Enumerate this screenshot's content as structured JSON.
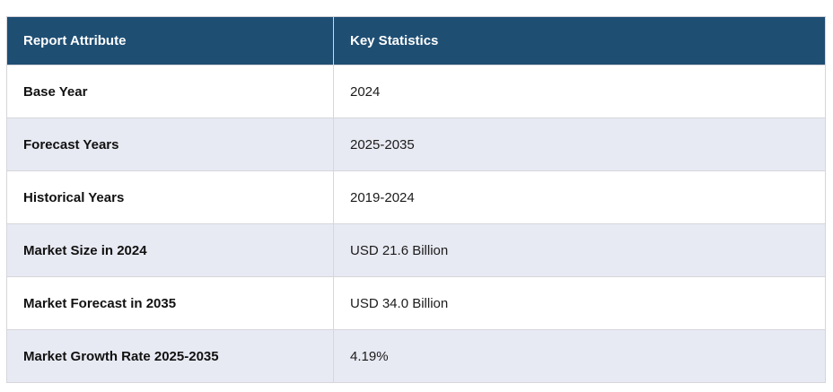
{
  "table": {
    "columns": [
      {
        "label": "Report Attribute"
      },
      {
        "label": "Key Statistics"
      }
    ],
    "rows": [
      {
        "attribute": "Base Year",
        "value": "2024"
      },
      {
        "attribute": "Forecast Years",
        "value": "2025-2035"
      },
      {
        "attribute": "Historical Years",
        "value": "2019-2024"
      },
      {
        "attribute": "Market Size in 2024",
        "value": "USD 21.6 Billion"
      },
      {
        "attribute": "Market Forecast in 2035",
        "value": "USD 34.0 Billion"
      },
      {
        "attribute": "Market Growth Rate 2025-2035",
        "value": "4.19%"
      }
    ],
    "colors": {
      "header_bg": "#1f4e73",
      "header_text": "#ffffff",
      "row_bg": "#ffffff",
      "row_alt_bg": "#e8eaf3",
      "border": "#d6d6db",
      "text": "#1b1b1b"
    }
  }
}
